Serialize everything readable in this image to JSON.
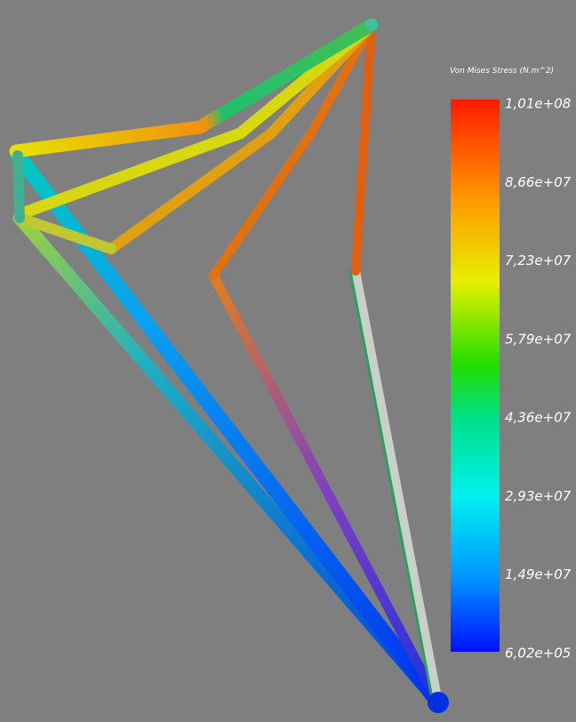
{
  "legend": {
    "title": "Von Mises Stress (N.m^2)",
    "ticks": [
      "1,01e+08",
      "8,66e+07",
      "7,23e+07",
      "5,79e+07",
      "4,36e+07",
      "2,93e+07",
      "1,49e+07",
      "6,02e+05"
    ]
  }
}
